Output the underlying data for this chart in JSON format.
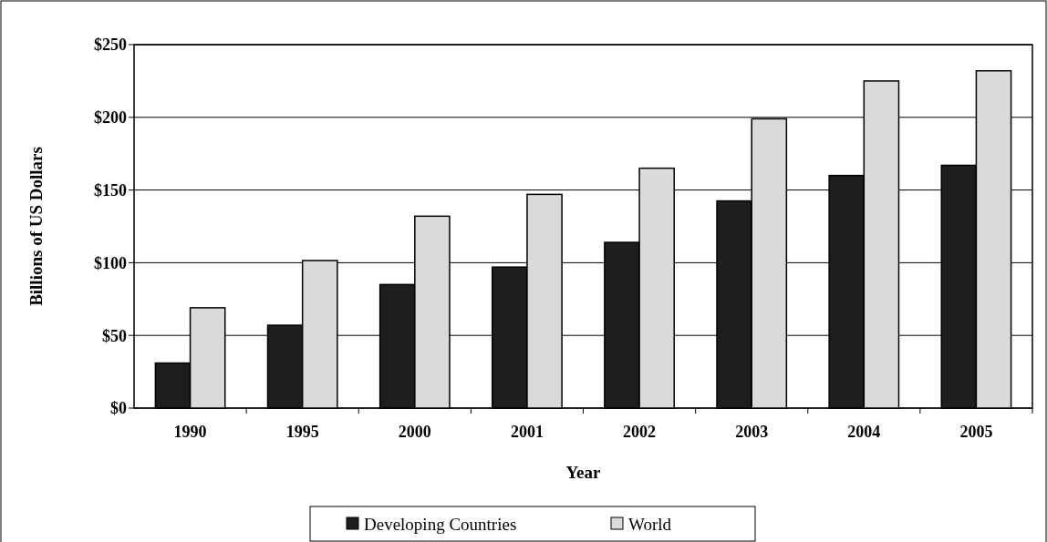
{
  "chart_data": {
    "type": "bar",
    "xlabel": "Year",
    "ylabel": "Billions of US Dollars",
    "categories": [
      "1990",
      "1995",
      "2000",
      "2001",
      "2002",
      "2003",
      "2004",
      "2005"
    ],
    "series": [
      {
        "name": "Developing Countries",
        "color": "#1e1e1e",
        "values": [
          31,
          57,
          85,
          97,
          114,
          142.5,
          160,
          167
        ]
      },
      {
        "name": "World",
        "color": "#dadada",
        "values": [
          69,
          101.5,
          132,
          147,
          165,
          199,
          225,
          232
        ]
      }
    ],
    "ylim": [
      0,
      250
    ],
    "yticks": [
      {
        "value": 0,
        "label": "$0"
      },
      {
        "value": 50,
        "label": "$50"
      },
      {
        "value": 100,
        "label": "$100"
      },
      {
        "value": 150,
        "label": "$150"
      },
      {
        "value": 200,
        "label": "$200"
      },
      {
        "value": 250,
        "label": "$250"
      }
    ],
    "grid": "y",
    "legend": "bottom"
  }
}
